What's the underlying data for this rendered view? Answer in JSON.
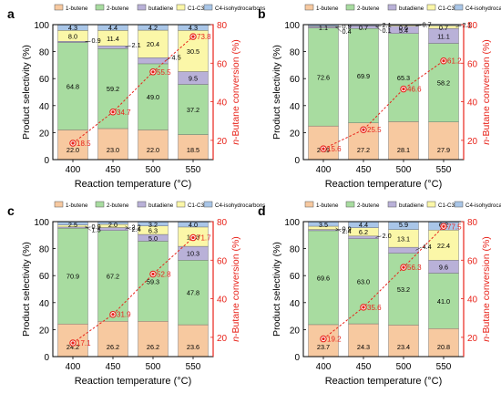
{
  "styles": {
    "colors": {
      "1-butene": "#F7C9A0",
      "2-butene": "#A8DCA0",
      "butadiene": "#B9B1D8",
      "C1-C3": "#FBF7A8",
      "C4-isohydrocarbons": "#A9C6E8",
      "conversion": "#E8231A"
    }
  },
  "chart_data": [
    {
      "panel": "a",
      "type": "bar",
      "stacked": true,
      "categories": [
        "400",
        "450",
        "500",
        "550"
      ],
      "xlabel": "Reaction temperature (°C)",
      "ylabel": "Product selectivity (%)",
      "ylim": [
        0,
        100
      ],
      "yticks": [
        "0",
        "20",
        "40",
        "60",
        "80",
        "100"
      ],
      "y2label": "n-Butane conversion (%)",
      "y2lim": [
        10,
        80
      ],
      "y2ticks": [
        "20",
        "40",
        "60",
        "80"
      ],
      "legend": [
        "1-butene",
        "2-butene",
        "butadiene",
        "C1-C3",
        "C4-isohydrocarbons"
      ],
      "series": [
        {
          "name": "1-butene",
          "values": [
            22.0,
            23.0,
            22.0,
            18.5
          ]
        },
        {
          "name": "2-butene",
          "values": [
            64.8,
            59.2,
            49.0,
            37.2
          ]
        },
        {
          "name": "butadiene",
          "values": [
            0.9,
            2.1,
            4.5,
            9.5
          ]
        },
        {
          "name": "C1-C3",
          "values": [
            8.0,
            11.4,
            20.4,
            30.5
          ]
        },
        {
          "name": "C4-isohydrocarbons",
          "values": [
            4.3,
            4.4,
            4.2,
            4.3
          ]
        }
      ],
      "labels": [
        [
          "22.0",
          "64.8",
          "0.9",
          "8.0",
          "4.3"
        ],
        [
          "23.0",
          "59.2",
          "2.1",
          "11.4",
          "4.4"
        ],
        [
          "22.0",
          "49.0",
          "4.5",
          "20.4",
          "4.2"
        ],
        [
          "18.5",
          "37.2",
          "9.5",
          "30.5",
          "4.3"
        ]
      ],
      "conversion": [
        18.5,
        34.7,
        55.5,
        73.8
      ],
      "conversion_labels": [
        "18.5",
        "34.7",
        "55.5",
        "73.8"
      ]
    },
    {
      "panel": "b",
      "type": "bar",
      "stacked": true,
      "categories": [
        "400",
        "450",
        "500",
        "550"
      ],
      "xlabel": "Reaction temperature (°C)",
      "ylabel": "Product selectivity (%)",
      "ylim": [
        0,
        100
      ],
      "yticks": [
        "0",
        "20",
        "40",
        "60",
        "80",
        "100"
      ],
      "y2label": "n-Butane conversion (%)",
      "y2lim": [
        10,
        80
      ],
      "y2ticks": [
        "20",
        "40",
        "60",
        "80"
      ],
      "legend": [
        "1-butene",
        "2-butene",
        "butadiene",
        "C1-C3",
        "C4-isohydrocarbons"
      ],
      "series": [
        {
          "name": "1-butene",
          "values": [
            24.9,
            27.2,
            28.1,
            27.9
          ]
        },
        {
          "name": "2-butene",
          "values": [
            72.6,
            69.9,
            65.3,
            58.2
          ]
        },
        {
          "name": "butadiene",
          "values": [
            0.9,
            2.1,
            5.4,
            11.1
          ]
        },
        {
          "name": "C1-C3",
          "values": [
            0.4,
            0.1,
            0.7,
            2.1
          ]
        },
        {
          "name": "C4-isohydrocarbons",
          "values": [
            1.1,
            0.7,
            0.6,
            0.7
          ]
        }
      ],
      "labels": [
        [
          "24.9",
          "72.6",
          "0.9",
          "0.4",
          "1.1"
        ],
        [
          "27.2",
          "69.9",
          "2.1",
          "0.1",
          "0.7"
        ],
        [
          "28.1",
          "65.3",
          "5.4",
          "0.7",
          "0.6"
        ],
        [
          "27.9",
          "58.2",
          "11.1",
          "2.1",
          "0.7"
        ]
      ],
      "conversion": [
        15.6,
        25.5,
        46.6,
        61.2
      ],
      "conversion_labels": [
        "15.6",
        "25.5",
        "46.6",
        "61.2"
      ]
    },
    {
      "panel": "c",
      "type": "bar",
      "stacked": true,
      "categories": [
        "400",
        "450",
        "500",
        "550"
      ],
      "xlabel": "Reaction temperature (°C)",
      "ylabel": "Product selectivity (%)",
      "ylim": [
        0,
        100
      ],
      "yticks": [
        "0",
        "20",
        "40",
        "60",
        "80",
        "100"
      ],
      "y2label": "n-Butane conversion (%)",
      "y2lim": [
        10,
        80
      ],
      "y2ticks": [
        "20",
        "40",
        "60",
        "80"
      ],
      "legend": [
        "1-butene",
        "2-butene",
        "butadiene",
        "C1-C3",
        "C4-isohydrocarbons"
      ],
      "series": [
        {
          "name": "1-butene",
          "values": [
            24.2,
            26.2,
            26.2,
            23.6
          ]
        },
        {
          "name": "2-butene",
          "values": [
            70.9,
            67.2,
            59.3,
            47.8
          ]
        },
        {
          "name": "butadiene",
          "values": [
            0.9,
            2.2,
            5.0,
            10.3
          ]
        },
        {
          "name": "C1-C3",
          "values": [
            1.5,
            2.4,
            6.3,
            14.3
          ]
        },
        {
          "name": "C4-isohydrocarbons",
          "values": [
            2.5,
            2.0,
            3.2,
            4.0
          ]
        }
      ],
      "labels": [
        [
          "24.2",
          "70.9",
          "0.9",
          "1.5",
          "2.5"
        ],
        [
          "26.2",
          "67.2",
          "2.2",
          "2.4",
          "2.0"
        ],
        [
          "26.2",
          "59.3",
          "5.0",
          "6.3",
          "3.2"
        ],
        [
          "23.6",
          "47.8",
          "10.3",
          "14.3",
          "4.0"
        ]
      ],
      "conversion": [
        17.1,
        31.9,
        52.8,
        71.7
      ],
      "conversion_labels": [
        "17.1",
        "31.9",
        "52.8",
        "71.7"
      ]
    },
    {
      "panel": "d",
      "type": "bar",
      "stacked": true,
      "categories": [
        "400",
        "450",
        "500",
        "550"
      ],
      "xlabel": "Reaction temperature (°C)",
      "ylabel": "Product selectivity (%)",
      "ylim": [
        0,
        100
      ],
      "yticks": [
        "0",
        "20",
        "40",
        "60",
        "80",
        "100"
      ],
      "y2label": "n-Butane conversion (%)",
      "y2lim": [
        10,
        80
      ],
      "y2ticks": [
        "20",
        "40",
        "60",
        "80"
      ],
      "legend": [
        "1-butene",
        "2-butene",
        "butadiene",
        "C1-C3",
        "C4-isohydrocarbons"
      ],
      "series": [
        {
          "name": "1-butene",
          "values": [
            23.7,
            24.3,
            23.4,
            20.8
          ]
        },
        {
          "name": "2-butene",
          "values": [
            69.6,
            63.0,
            53.2,
            41.0
          ]
        },
        {
          "name": "butadiene",
          "values": [
            0.9,
            2.0,
            4.4,
            9.6
          ]
        },
        {
          "name": "C1-C3",
          "values": [
            2.4,
            6.2,
            13.1,
            22.4
          ]
        },
        {
          "name": "C4-isohydrocarbons",
          "values": [
            3.5,
            4.4,
            5.9,
            6.2
          ]
        }
      ],
      "labels": [
        [
          "23.7",
          "69.6",
          "0.9",
          "2.4",
          "3.5"
        ],
        [
          "24.3",
          "63.0",
          "2.0",
          "6.2",
          "4.4"
        ],
        [
          "23.4",
          "53.2",
          "4.4",
          "13.1",
          "5.9"
        ],
        [
          "20.8",
          "41.0",
          "9.6",
          "22.4",
          "6.2"
        ]
      ],
      "conversion": [
        19.2,
        35.6,
        56.3,
        77.5
      ],
      "conversion_labels": [
        "19.2",
        "35.6",
        "56.3",
        "77.5"
      ]
    }
  ]
}
